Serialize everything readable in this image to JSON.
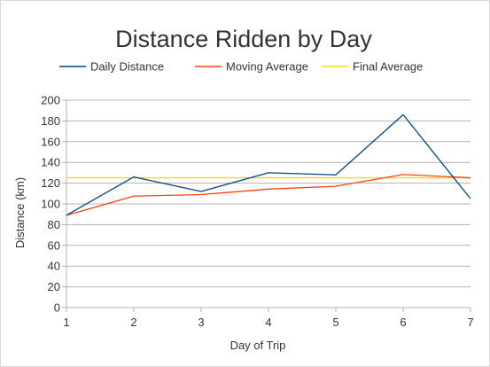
{
  "chart_data": {
    "type": "line",
    "title": "Distance Ridden by Day",
    "xlabel": "Day of Trip",
    "ylabel": "Distance (km)",
    "x": [
      1,
      2,
      3,
      4,
      5,
      6,
      7
    ],
    "xlim": [
      1,
      7
    ],
    "ylim": [
      0,
      200
    ],
    "yticks": [
      0,
      20,
      40,
      60,
      80,
      100,
      120,
      140,
      160,
      180,
      200
    ],
    "grid": true,
    "legend_position": "top",
    "series": [
      {
        "name": "Daily Distance",
        "color": "#004586",
        "values": [
          89,
          126,
          112,
          130,
          128,
          186,
          105
        ]
      },
      {
        "name": "Moving Average",
        "color": "#ff420e",
        "values": [
          89,
          107.5,
          109,
          114.25,
          117,
          128.33,
          125.14
        ]
      },
      {
        "name": "Final Average",
        "color": "#ffd320",
        "values": [
          125.14,
          125.14,
          125.14,
          125.14,
          125.14,
          125.14,
          125.14
        ]
      }
    ]
  }
}
